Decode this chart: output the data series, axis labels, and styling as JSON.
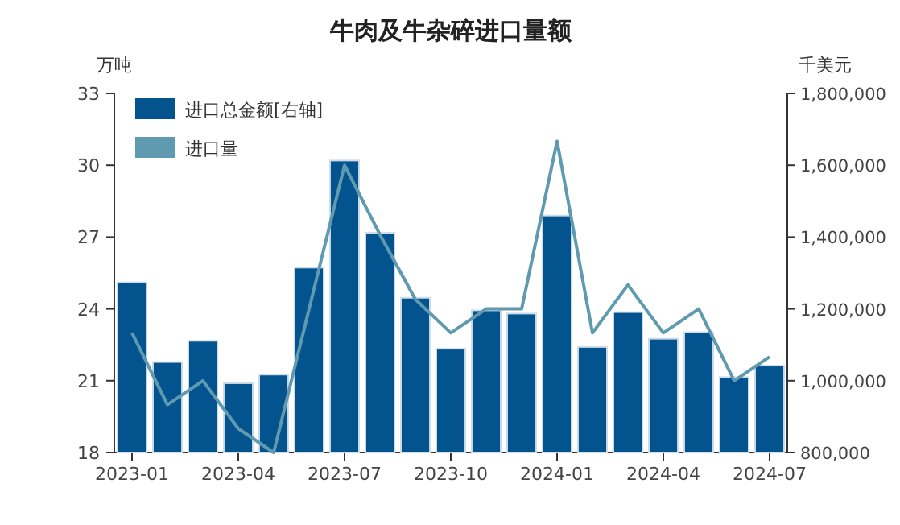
{
  "chart_data": {
    "type": "bar",
    "title": "牛肉及牛杂碎进口量额",
    "ylabel": "万吨",
    "y2label": "千美元",
    "categories": [
      "2023-01",
      null,
      null,
      "2023-04",
      null,
      null,
      "2023-07",
      null,
      null,
      "2023-10",
      null,
      null,
      "2024-01",
      null,
      null,
      "2024-04",
      null,
      null,
      "2024-07"
    ],
    "series": [
      {
        "name": "进口总金额[右轴]",
        "axis": "y2",
        "color": "#03538f",
        "values": [
          1274000,
          1052000,
          1111000,
          993000,
          1017000,
          1315000,
          1613000,
          1412000,
          1231000,
          1089000,
          1196000,
          1187000,
          1460000,
          1094000,
          1191000,
          1117000,
          1135000,
          1010000,
          1042000
        ]
      },
      {
        "name": "进口量",
        "type": "line",
        "axis": "y",
        "color": "#5f9ab0",
        "values": [
          23.0,
          20.0,
          21.0,
          19.0,
          18.0,
          24.0,
          30.0,
          27.1,
          24.4,
          23.0,
          24.0,
          24.0,
          31.0,
          23.0,
          25.0,
          23.0,
          24.0,
          21.0,
          22.0
        ]
      }
    ],
    "ylim": [
      18,
      33
    ],
    "yticks": [
      18,
      21,
      24,
      27,
      30,
      33
    ],
    "y2lim": [
      800000,
      1800000
    ],
    "y2ticks": [
      {
        "value": 800000,
        "label": "800,000"
      },
      {
        "value": 1000000,
        "label": "1,000,000"
      },
      {
        "value": 1200000,
        "label": "1,200,000"
      },
      {
        "value": 1400000,
        "label": "1,400,000"
      },
      {
        "value": 1600000,
        "label": "1,600,000"
      },
      {
        "value": 1800000,
        "label": "1,800,000"
      }
    ],
    "legend": "top left"
  }
}
